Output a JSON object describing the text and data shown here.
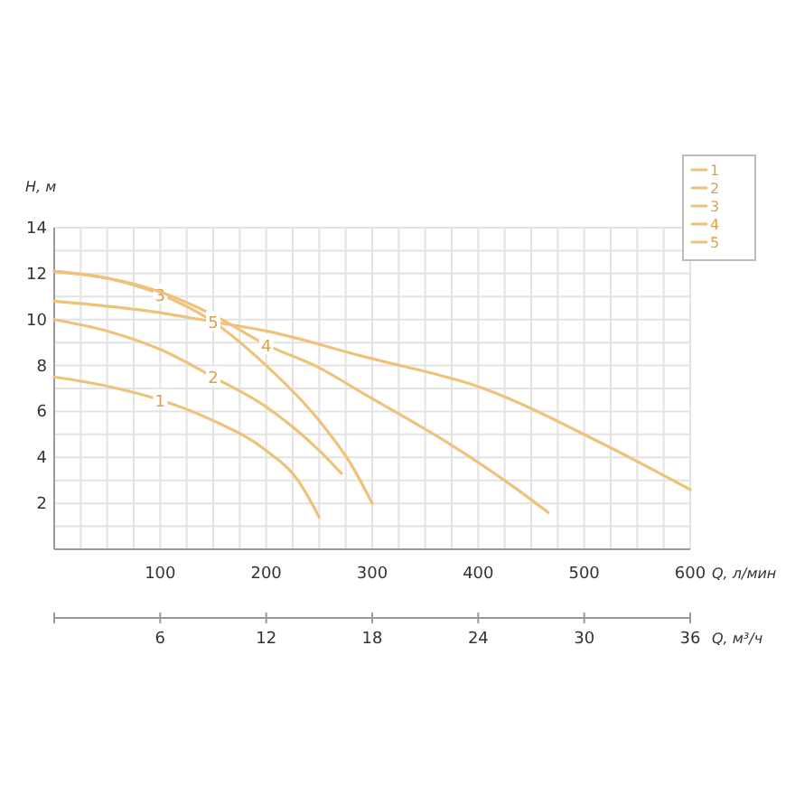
{
  "chart_data": {
    "type": "line",
    "xlabel": "Q, л/мин",
    "ylabel": "H, м",
    "x2label": "Q, м³/ч",
    "xlim": [
      0,
      600
    ],
    "xticks": [
      {
        "value": 25,
        "label": null
      },
      {
        "value": 50,
        "label": null
      },
      {
        "value": 75,
        "label": null
      },
      100,
      {
        "value": 125,
        "label": null
      },
      {
        "value": 150,
        "label": null
      },
      {
        "value": 175,
        "label": null
      },
      200,
      {
        "value": 225,
        "label": null
      },
      {
        "value": 250,
        "label": null
      },
      {
        "value": 275,
        "label": null
      },
      300,
      {
        "value": 325,
        "label": null
      },
      {
        "value": 350,
        "label": null
      },
      {
        "value": 375,
        "label": null
      },
      400,
      {
        "value": 425,
        "label": null
      },
      {
        "value": 450,
        "label": null
      },
      {
        "value": 475,
        "label": null
      },
      500,
      {
        "value": 525,
        "label": null
      },
      {
        "value": 550,
        "label": null
      },
      {
        "value": 575,
        "label": null
      },
      600
    ],
    "ylim": [
      0,
      14
    ],
    "yticks": [
      {
        "value": 1,
        "label": null
      },
      2,
      {
        "value": 3,
        "label": null
      },
      4,
      {
        "value": 5,
        "label": null
      },
      6,
      {
        "value": 7,
        "label": null
      },
      8,
      {
        "value": 9,
        "label": null
      },
      10,
      {
        "value": 11,
        "label": null
      },
      12,
      {
        "value": 13,
        "label": null
      },
      14
    ],
    "x2lim": [
      0,
      36
    ],
    "x2ticks": [
      6,
      12,
      18,
      24,
      30,
      36
    ],
    "grid": true,
    "legend": "top right",
    "marker": "none",
    "line_style": "solid",
    "series": [
      {
        "name": "1",
        "color": "#efc27c",
        "x": [
          0,
          50,
          100,
          150,
          200,
          230,
          250
        ],
        "values": [
          7.5,
          7.1,
          6.5,
          5.6,
          4.3,
          3.0,
          1.4
        ]
      },
      {
        "name": "2",
        "color": "#efc27c",
        "x": [
          0,
          50,
          100,
          150,
          200,
          250,
          271
        ],
        "values": [
          10,
          9.5,
          8.7,
          7.5,
          6.2,
          4.3,
          3.3
        ]
      },
      {
        "name": "3",
        "color": "#efc27c",
        "x": [
          0,
          50,
          100,
          150,
          200,
          250,
          280,
          300
        ],
        "values": [
          12.1,
          11.8,
          11.1,
          9.9,
          8.0,
          5.6,
          3.7,
          2.0
        ]
      },
      {
        "name": "4",
        "color": "#efc27c",
        "x": [
          0,
          50,
          100,
          150,
          200,
          250,
          291,
          376,
          437,
          466
        ],
        "values": [
          12.1,
          11.8,
          11.2,
          10.2,
          8.9,
          7.9,
          6.8,
          4.5,
          2.6,
          1.6
        ]
      },
      {
        "name": "5",
        "color": "#efc27c",
        "x": [
          0,
          100,
          150,
          200,
          291,
          405,
          515,
          600
        ],
        "values": [
          10.8,
          10.3,
          9.9,
          9.5,
          8.4,
          7.0,
          4.65,
          2.6
        ]
      }
    ]
  }
}
